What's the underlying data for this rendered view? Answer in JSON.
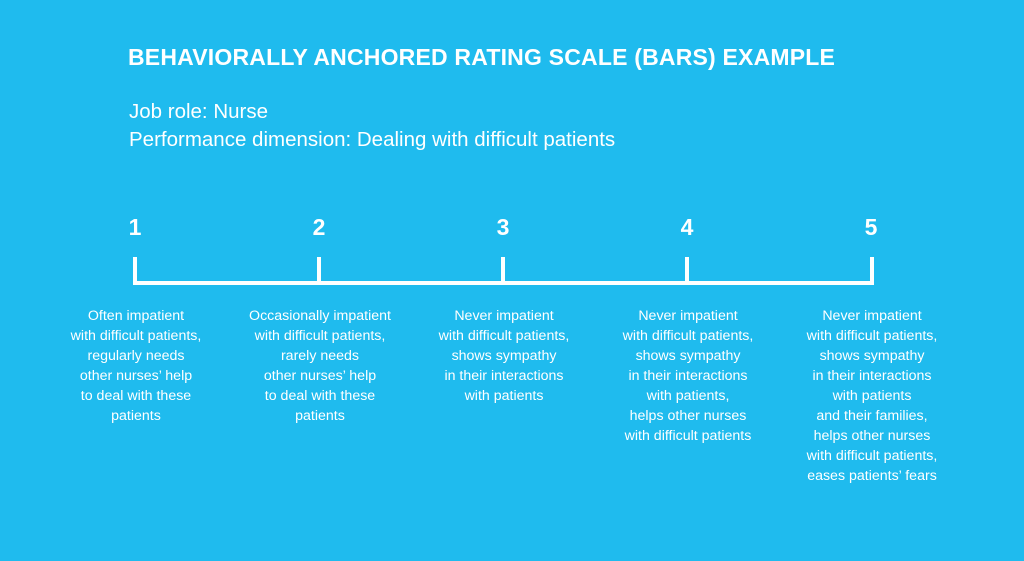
{
  "title": "BEHAVIORALLY ANCHORED RATING SCALE (BARS) EXAMPLE",
  "job_role": "Job role: Nurse",
  "performance_dimension": "Performance dimension: Dealing with difficult patients",
  "scale": [
    {
      "number": "1",
      "description": "Often impatient\nwith difficult patients,\nregularly needs\nother nurses’ help\nto deal with these\npatients"
    },
    {
      "number": "2",
      "description": "Occasionally impatient\nwith difficult patients,\nrarely needs\nother nurses’ help\nto deal with these\npatients"
    },
    {
      "number": "3",
      "description": "Never impatient\nwith difficult patients,\nshows sympathy\nin their interactions\nwith patients"
    },
    {
      "number": "4",
      "description": "Never impatient\nwith difficult patients,\nshows sympathy\nin their interactions\nwith patients,\nhelps other nurses\nwith difficult patients"
    },
    {
      "number": "5",
      "description": "Never impatient\nwith difficult patients,\nshows sympathy\nin their interactions\nwith patients\nand their families,\nhelps other nurses\nwith difficult patients,\neases patients’ fears"
    }
  ],
  "colors": {
    "background": "#1fbbee",
    "foreground": "#ffffff"
  }
}
